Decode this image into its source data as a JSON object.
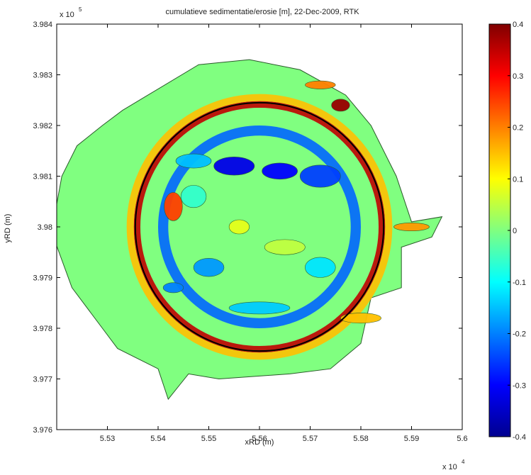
{
  "chart_data": [
    {
      "type": "heatmap",
      "title": "cumulatieve sedimentatie/erosie [m], 22-Dec-2009, RTK",
      "xlabel": "xRD (m)",
      "ylabel": "yRD (m)",
      "x_multiplier_label": "x 10",
      "x_multiplier_exp": "4",
      "y_multiplier_label": "x 10",
      "y_multiplier_exp": "5",
      "xlim": [
        55200,
        56000
      ],
      "ylim": [
        397600,
        398400
      ],
      "x_ticks": [
        55300,
        55400,
        55500,
        55600,
        55700,
        55800,
        55900,
        56000
      ],
      "x_tick_labels": [
        "5.53",
        "5.54",
        "5.55",
        "5.56",
        "5.57",
        "5.58",
        "5.59",
        "5.6"
      ],
      "y_ticks": [
        397600,
        397700,
        397800,
        397900,
        398000,
        398100,
        398200,
        398300,
        398400
      ],
      "y_tick_labels": [
        "3.976",
        "3.977",
        "3.978",
        "3.979",
        "3.98",
        "3.981",
        "3.982",
        "3.983",
        "3.984"
      ],
      "reference_circle": {
        "center_x": 55600,
        "center_y": 398000,
        "radius": 245
      },
      "survey_region": [
        [
          55380,
          398260
        ],
        [
          55480,
          398320
        ],
        [
          55580,
          398330
        ],
        [
          55680,
          398310
        ],
        [
          55770,
          398260
        ],
        [
          55820,
          398200
        ],
        [
          55870,
          398100
        ],
        [
          55900,
          398010
        ],
        [
          55960,
          398020
        ],
        [
          55940,
          397980
        ],
        [
          55880,
          397960
        ],
        [
          55880,
          397880
        ],
        [
          55820,
          397860
        ],
        [
          55800,
          397770
        ],
        [
          55740,
          397720
        ],
        [
          55660,
          397710
        ],
        [
          55520,
          397700
        ],
        [
          55460,
          397710
        ],
        [
          55420,
          397660
        ],
        [
          55400,
          397720
        ],
        [
          55320,
          397760
        ],
        [
          55290,
          397800
        ],
        [
          55230,
          397880
        ],
        [
          55190,
          397990
        ],
        [
          55210,
          398100
        ],
        [
          55240,
          398160
        ],
        [
          55290,
          398200
        ],
        [
          55330,
          398230
        ]
      ],
      "features": [
        {
          "kind": "ring",
          "value": 0.35,
          "inner": 235,
          "outer": 248
        },
        {
          "kind": "ring",
          "value": 0.15,
          "inner": 248,
          "outer": 262
        },
        {
          "kind": "ring",
          "value": -0.22,
          "inner": 180,
          "outer": 200
        },
        {
          "kind": "blob",
          "x": 55550,
          "y": 398120,
          "rx": 40,
          "ry": 18,
          "value": -0.32
        },
        {
          "kind": "blob",
          "x": 55640,
          "y": 398110,
          "rx": 35,
          "ry": 16,
          "value": -0.3
        },
        {
          "kind": "blob",
          "x": 55720,
          "y": 398100,
          "rx": 40,
          "ry": 22,
          "value": -0.25
        },
        {
          "kind": "blob",
          "x": 55470,
          "y": 398130,
          "rx": 35,
          "ry": 14,
          "value": -0.15
        },
        {
          "kind": "blob",
          "x": 55430,
          "y": 398040,
          "rx": 18,
          "ry": 28,
          "value": 0.25
        },
        {
          "kind": "blob",
          "x": 55500,
          "y": 397920,
          "rx": 30,
          "ry": 18,
          "value": -0.18
        },
        {
          "kind": "blob",
          "x": 55430,
          "y": 397880,
          "rx": 20,
          "ry": 10,
          "value": -0.2
        },
        {
          "kind": "blob",
          "x": 55650,
          "y": 397960,
          "rx": 40,
          "ry": 15,
          "value": 0.05
        },
        {
          "kind": "blob",
          "x": 55720,
          "y": 397920,
          "rx": 30,
          "ry": 20,
          "value": -0.12
        },
        {
          "kind": "blob",
          "x": 55600,
          "y": 397840,
          "rx": 60,
          "ry": 12,
          "value": -0.14
        },
        {
          "kind": "blob",
          "x": 55470,
          "y": 398060,
          "rx": 25,
          "ry": 22,
          "value": -0.06
        },
        {
          "kind": "blob",
          "x": 55560,
          "y": 398000,
          "rx": 20,
          "ry": 14,
          "value": 0.08
        },
        {
          "kind": "blob",
          "x": 55760,
          "y": 398240,
          "rx": 18,
          "ry": 12,
          "value": 0.38
        },
        {
          "kind": "blob",
          "x": 55720,
          "y": 398280,
          "rx": 30,
          "ry": 8,
          "value": 0.2
        },
        {
          "kind": "blob",
          "x": 55900,
          "y": 398000,
          "rx": 35,
          "ry": 8,
          "value": 0.18
        },
        {
          "kind": "blob",
          "x": 55800,
          "y": 397820,
          "rx": 40,
          "ry": 10,
          "value": 0.15
        }
      ],
      "colorbar": {
        "min": -0.4,
        "max": 0.4,
        "ticks": [
          0.4,
          0.3,
          0.2,
          0.1,
          0,
          -0.1,
          -0.2,
          -0.3,
          -0.4
        ],
        "tick_labels": [
          "0.4",
          "0.3",
          "0.2",
          "0.1",
          "0",
          "-0.1",
          "-0.2",
          "-0.3",
          "-0.4"
        ]
      },
      "colors": {
        "background": "#ffffff",
        "axis": "#000000",
        "circle": "#000000",
        "contour": "#2a5a2a",
        "colormap": [
          "#00008f",
          "#0000ff",
          "#0080ff",
          "#00ffff",
          "#80ff80",
          "#ffff00",
          "#ff8000",
          "#ff0000",
          "#800000"
        ]
      }
    }
  ]
}
